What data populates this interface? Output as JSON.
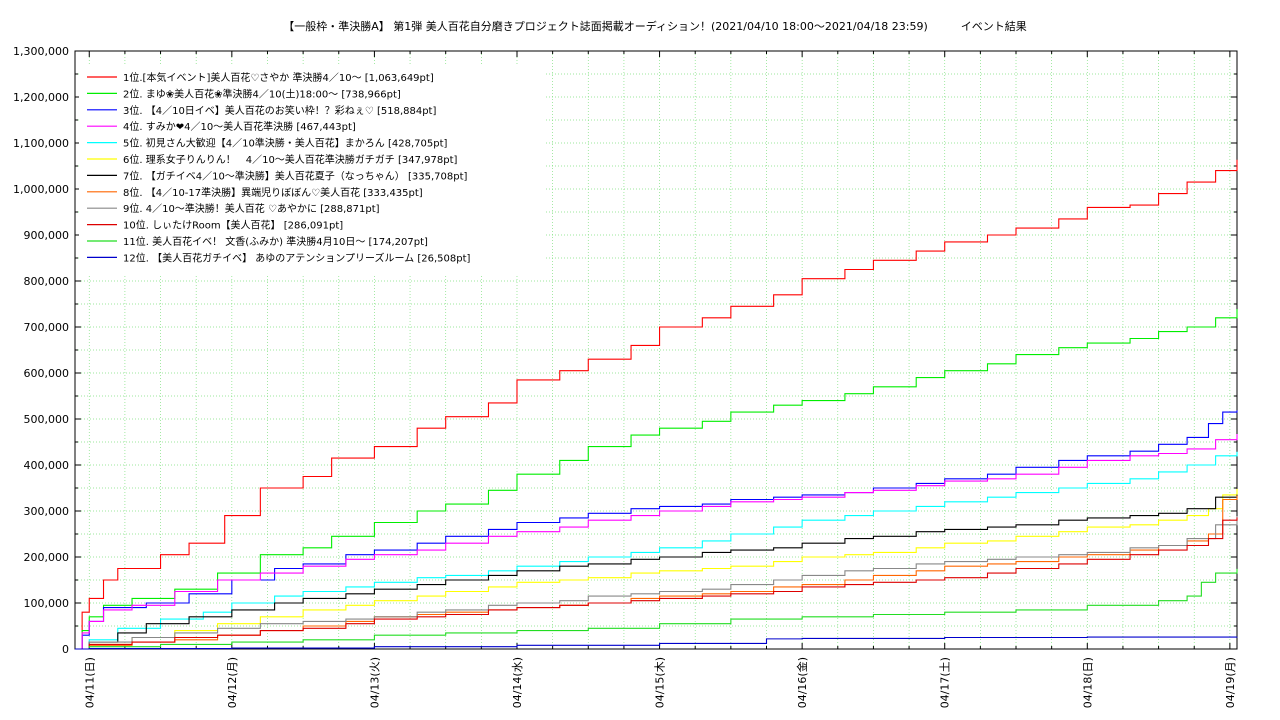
{
  "chart_data": {
    "type": "line",
    "title": "【一般枠・準決勝A】 第1弾 美人百花自分磨きプロジェクト誌面掲載オーディション！(2021/04/10 18:00～2021/04/18 23:59)　　　イベント結果",
    "xlabel": "",
    "ylabel": "",
    "ylim": [
      0,
      1300000
    ],
    "y_ticks": [
      "0",
      "100,000",
      "200,000",
      "300,000",
      "400,000",
      "500,000",
      "600,000",
      "700,000",
      "800,000",
      "900,000",
      "1,000,000",
      "1,100,000",
      "1,200,000",
      "1,300,000"
    ],
    "x_range": [
      -0.1,
      8.05
    ],
    "x_ticks": [
      {
        "x": 0,
        "label": "04/11(日)"
      },
      {
        "x": 1,
        "label": "04/12(月)"
      },
      {
        "x": 2,
        "label": "04/13(火)"
      },
      {
        "x": 3,
        "label": "04/14(水)"
      },
      {
        "x": 4,
        "label": "04/15(木)"
      },
      {
        "x": 5,
        "label": "04/16(金)"
      },
      {
        "x": 6,
        "label": "04/17(土)"
      },
      {
        "x": 7,
        "label": "04/18(日)"
      },
      {
        "x": 8,
        "label": "04/19(月)"
      }
    ],
    "grid": true,
    "legend_position": "top-left",
    "series": [
      {
        "name": "1位.[本気イベント]美人百花♡さやか 準決勝4／10～ [1,063,649pt]",
        "color": "#ff0000",
        "x": [
          -0.1,
          -0.05,
          0.0,
          0.1,
          0.2,
          0.5,
          0.7,
          0.95,
          1.2,
          1.5,
          1.7,
          2.0,
          2.3,
          2.5,
          2.8,
          3.0,
          3.3,
          3.5,
          3.8,
          4.0,
          4.3,
          4.5,
          4.8,
          5.0,
          5.3,
          5.5,
          5.8,
          6.0,
          6.3,
          6.5,
          6.8,
          7.0,
          7.3,
          7.5,
          7.7,
          7.9,
          8.05
        ],
        "y": [
          0,
          80000,
          110000,
          150000,
          175000,
          205000,
          230000,
          290000,
          350000,
          375000,
          415000,
          440000,
          480000,
          505000,
          535000,
          585000,
          605000,
          630000,
          660000,
          700000,
          720000,
          745000,
          770000,
          805000,
          825000,
          845000,
          865000,
          885000,
          900000,
          915000,
          935000,
          960000,
          965000,
          990000,
          1015000,
          1040000,
          1063649
        ]
      },
      {
        "name": "2位. まゆ❀美人百花❀準決勝4／10(土)18:00～ [738,966pt]",
        "color": "#00ee00",
        "x": [
          -0.1,
          -0.05,
          0.0,
          0.1,
          0.3,
          0.6,
          0.9,
          1.2,
          1.5,
          1.7,
          2.0,
          2.3,
          2.5,
          2.8,
          3.0,
          3.3,
          3.5,
          3.8,
          4.0,
          4.3,
          4.5,
          4.8,
          5.0,
          5.3,
          5.5,
          5.8,
          6.0,
          6.3,
          6.5,
          6.8,
          7.0,
          7.3,
          7.5,
          7.7,
          7.9,
          8.05
        ],
        "y": [
          0,
          40000,
          70000,
          95000,
          110000,
          130000,
          165000,
          205000,
          220000,
          245000,
          275000,
          300000,
          315000,
          345000,
          380000,
          410000,
          440000,
          465000,
          480000,
          495000,
          515000,
          530000,
          540000,
          555000,
          570000,
          590000,
          605000,
          620000,
          640000,
          655000,
          665000,
          675000,
          690000,
          700000,
          720000,
          738966
        ]
      },
      {
        "name": "3位. 【4／10日イベ】美人百花のお笑い枠！？彩ねぇ♡ [518,884pt]",
        "color": "#0000ff",
        "x": [
          -0.1,
          -0.05,
          0.0,
          0.1,
          0.4,
          0.7,
          1.0,
          1.3,
          1.5,
          1.8,
          2.0,
          2.3,
          2.5,
          2.8,
          3.0,
          3.3,
          3.5,
          3.8,
          4.0,
          4.3,
          4.5,
          4.8,
          5.0,
          5.3,
          5.5,
          5.8,
          6.0,
          6.3,
          6.5,
          6.8,
          7.0,
          7.3,
          7.5,
          7.7,
          7.85,
          7.95,
          8.05
        ],
        "y": [
          0,
          30000,
          60000,
          90000,
          100000,
          120000,
          150000,
          175000,
          185000,
          205000,
          215000,
          230000,
          245000,
          260000,
          275000,
          285000,
          295000,
          305000,
          310000,
          315000,
          325000,
          330000,
          335000,
          340000,
          350000,
          360000,
          370000,
          380000,
          395000,
          410000,
          420000,
          430000,
          445000,
          460000,
          490000,
          515000,
          518884
        ]
      },
      {
        "name": "4位. すみか❤4／10～美人百花準決勝 [467,443pt]",
        "color": "#ff00ff",
        "x": [
          -0.1,
          -0.05,
          0.0,
          0.1,
          0.3,
          0.6,
          0.9,
          1.2,
          1.5,
          1.8,
          2.0,
          2.3,
          2.5,
          2.8,
          3.0,
          3.3,
          3.5,
          3.8,
          4.0,
          4.3,
          4.5,
          4.8,
          5.0,
          5.3,
          5.5,
          5.8,
          6.0,
          6.3,
          6.5,
          6.8,
          7.0,
          7.3,
          7.5,
          7.7,
          7.9,
          8.05
        ],
        "y": [
          0,
          35000,
          60000,
          85000,
          95000,
          125000,
          150000,
          165000,
          180000,
          195000,
          205000,
          215000,
          230000,
          245000,
          255000,
          265000,
          280000,
          290000,
          300000,
          310000,
          320000,
          325000,
          330000,
          340000,
          345000,
          355000,
          365000,
          370000,
          380000,
          395000,
          410000,
          420000,
          425000,
          435000,
          455000,
          467443
        ]
      },
      {
        "name": "5位. 初見さん大歓迎【4／10準決勝・美人百花】まかろん [428,705pt]",
        "color": "#00ffff",
        "x": [
          -0.1,
          0.0,
          0.2,
          0.5,
          0.8,
          1.0,
          1.3,
          1.5,
          1.8,
          2.0,
          2.3,
          2.5,
          2.8,
          3.0,
          3.3,
          3.5,
          3.8,
          4.0,
          4.3,
          4.5,
          4.8,
          5.0,
          5.3,
          5.5,
          5.8,
          6.0,
          6.3,
          6.5,
          6.8,
          7.0,
          7.3,
          7.5,
          7.7,
          7.9,
          8.05
        ],
        "y": [
          0,
          20000,
          45000,
          65000,
          80000,
          100000,
          115000,
          125000,
          135000,
          145000,
          155000,
          160000,
          170000,
          180000,
          190000,
          200000,
          210000,
          220000,
          235000,
          250000,
          265000,
          280000,
          290000,
          300000,
          310000,
          320000,
          330000,
          340000,
          350000,
          360000,
          370000,
          385000,
          400000,
          420000,
          428705
        ]
      },
      {
        "name": "6位. 理系女子りんりん！　4／10～美人百花準決勝ガチガチ [347,978pt]",
        "color": "#ffff00",
        "x": [
          -0.1,
          0.0,
          0.3,
          0.6,
          0.9,
          1.2,
          1.5,
          1.8,
          2.0,
          2.3,
          2.5,
          2.8,
          3.0,
          3.3,
          3.5,
          3.8,
          4.0,
          4.3,
          4.5,
          4.8,
          5.0,
          5.3,
          5.5,
          5.8,
          6.0,
          6.3,
          6.5,
          6.8,
          7.0,
          7.3,
          7.5,
          7.7,
          7.85,
          7.95,
          8.05
        ],
        "y": [
          0,
          10000,
          25000,
          40000,
          55000,
          70000,
          85000,
          95000,
          105000,
          115000,
          125000,
          135000,
          145000,
          150000,
          155000,
          165000,
          170000,
          175000,
          180000,
          190000,
          200000,
          205000,
          210000,
          220000,
          230000,
          235000,
          245000,
          255000,
          265000,
          270000,
          280000,
          290000,
          305000,
          335000,
          347978
        ]
      },
      {
        "name": "7位. 【ガチイベ4／10～準決勝】美人百花夏子（なっちゃん） [335,708pt]",
        "color": "#000000",
        "x": [
          -0.1,
          0.0,
          0.2,
          0.4,
          0.7,
          1.0,
          1.3,
          1.5,
          1.8,
          2.0,
          2.3,
          2.5,
          2.8,
          3.0,
          3.3,
          3.5,
          3.8,
          4.0,
          4.3,
          4.5,
          4.8,
          5.0,
          5.3,
          5.5,
          5.8,
          6.0,
          6.3,
          6.5,
          6.8,
          7.0,
          7.3,
          7.5,
          7.7,
          7.9,
          8.05
        ],
        "y": [
          0,
          15000,
          35000,
          55000,
          70000,
          85000,
          100000,
          110000,
          120000,
          130000,
          140000,
          150000,
          160000,
          170000,
          180000,
          185000,
          195000,
          200000,
          210000,
          215000,
          220000,
          230000,
          240000,
          245000,
          255000,
          260000,
          265000,
          270000,
          280000,
          285000,
          290000,
          295000,
          305000,
          330000,
          335708
        ]
      },
      {
        "name": "8位. 【4／10-17準決勝】異端児りぼぼん♡美人百花 [333,435pt]",
        "color": "#ff6600",
        "x": [
          -0.1,
          0.0,
          0.3,
          0.6,
          0.9,
          1.2,
          1.5,
          1.8,
          2.0,
          2.3,
          2.5,
          2.8,
          3.0,
          3.3,
          3.5,
          3.8,
          4.0,
          4.3,
          4.5,
          4.8,
          5.0,
          5.3,
          5.5,
          5.8,
          6.0,
          6.3,
          6.5,
          6.8,
          7.0,
          7.3,
          7.5,
          7.7,
          7.85,
          7.95,
          8.05
        ],
        "y": [
          0,
          8000,
          15000,
          20000,
          30000,
          40000,
          50000,
          60000,
          70000,
          75000,
          80000,
          85000,
          90000,
          95000,
          100000,
          110000,
          115000,
          120000,
          125000,
          135000,
          140000,
          150000,
          160000,
          170000,
          180000,
          185000,
          190000,
          200000,
          205000,
          215000,
          225000,
          235000,
          250000,
          325000,
          333435
        ]
      },
      {
        "name": "9位. 4／10～準決勝！美人百花 ♡あやかに [288,871pt]",
        "color": "#888888",
        "x": [
          -0.1,
          0.0,
          0.3,
          0.6,
          0.9,
          1.2,
          1.5,
          1.8,
          2.0,
          2.3,
          2.5,
          2.8,
          3.0,
          3.3,
          3.5,
          3.8,
          4.0,
          4.3,
          4.5,
          4.8,
          5.0,
          5.3,
          5.5,
          5.8,
          6.0,
          6.3,
          6.5,
          6.8,
          7.0,
          7.3,
          7.5,
          7.7,
          7.9,
          8.05
        ],
        "y": [
          0,
          15000,
          25000,
          35000,
          45000,
          55000,
          60000,
          65000,
          70000,
          80000,
          85000,
          95000,
          100000,
          105000,
          115000,
          120000,
          125000,
          130000,
          140000,
          150000,
          160000,
          170000,
          175000,
          185000,
          190000,
          195000,
          200000,
          205000,
          210000,
          220000,
          225000,
          240000,
          270000,
          288871
        ]
      },
      {
        "name": "10位. しぃたけRoom【美人百花】 [286,091pt]",
        "color": "#dd0000",
        "x": [
          -0.1,
          0.0,
          0.3,
          0.6,
          0.9,
          1.2,
          1.5,
          1.8,
          2.0,
          2.3,
          2.5,
          2.8,
          3.0,
          3.3,
          3.5,
          3.8,
          4.0,
          4.3,
          4.5,
          4.8,
          5.0,
          5.3,
          5.5,
          5.8,
          6.0,
          6.3,
          6.5,
          6.8,
          7.0,
          7.3,
          7.5,
          7.7,
          7.85,
          7.95,
          8.05
        ],
        "y": [
          0,
          10000,
          15000,
          25000,
          30000,
          40000,
          45000,
          55000,
          65000,
          70000,
          75000,
          85000,
          90000,
          95000,
          100000,
          105000,
          110000,
          115000,
          120000,
          125000,
          135000,
          140000,
          145000,
          150000,
          155000,
          165000,
          175000,
          185000,
          195000,
          205000,
          215000,
          225000,
          240000,
          280000,
          286091
        ]
      },
      {
        "name": "11位. 美人百花イベ！ 文香(ふみか) 準決勝4月10日～ [174,207pt]",
        "color": "#22dd22",
        "x": [
          -0.1,
          0.0,
          0.5,
          1.0,
          1.5,
          2.0,
          2.5,
          3.0,
          3.5,
          4.0,
          4.5,
          5.0,
          5.5,
          6.0,
          6.5,
          7.0,
          7.5,
          7.7,
          7.8,
          7.9,
          8.05
        ],
        "y": [
          0,
          5000,
          10000,
          15000,
          20000,
          30000,
          35000,
          40000,
          45000,
          55000,
          65000,
          70000,
          75000,
          80000,
          85000,
          95000,
          105000,
          115000,
          145000,
          165000,
          174207
        ]
      },
      {
        "name": "12位. 【美人百花ガチイベ】 あゆのアテンションプリーズルーム [26,508pt]",
        "color": "#0000cc",
        "x": [
          -0.1,
          0.0,
          1.0,
          2.0,
          3.0,
          4.0,
          4.7,
          4.75,
          5.0,
          6.0,
          7.0,
          8.05
        ],
        "y": [
          0,
          1000,
          2000,
          5000,
          8000,
          12000,
          12000,
          22000,
          23000,
          25000,
          26000,
          26508
        ]
      }
    ]
  }
}
